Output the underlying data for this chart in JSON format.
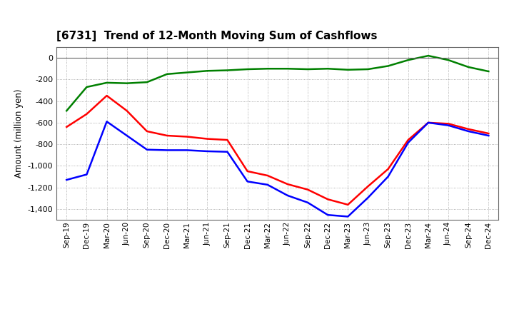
{
  "title": "[6731]  Trend of 12-Month Moving Sum of Cashflows",
  "ylabel": "Amount (million yen)",
  "ylim": [
    -1500,
    100
  ],
  "yticks": [
    0,
    -200,
    -400,
    -600,
    -800,
    -1000,
    -1200,
    -1400
  ],
  "x_labels": [
    "Sep-19",
    "Dec-19",
    "Mar-20",
    "Jun-20",
    "Sep-20",
    "Dec-20",
    "Mar-21",
    "Jun-21",
    "Sep-21",
    "Dec-21",
    "Mar-22",
    "Jun-22",
    "Sep-22",
    "Dec-22",
    "Mar-23",
    "Jun-23",
    "Sep-23",
    "Dec-23",
    "Mar-24",
    "Jun-24",
    "Sep-24",
    "Dec-24"
  ],
  "operating": [
    -640,
    -520,
    -350,
    -490,
    -680,
    -720,
    -730,
    -750,
    -760,
    -1050,
    -1090,
    -1170,
    -1220,
    -1310,
    -1360,
    -1190,
    -1030,
    -760,
    -600,
    -610,
    -660,
    -700
  ],
  "investing": [
    -490,
    -270,
    -230,
    -235,
    -225,
    -150,
    -135,
    -120,
    -115,
    -105,
    -100,
    -100,
    -105,
    -100,
    -110,
    -105,
    -75,
    -20,
    20,
    -20,
    -85,
    -125
  ],
  "free": [
    -1130,
    -1080,
    -590,
    -720,
    -850,
    -855,
    -855,
    -865,
    -870,
    -1145,
    -1175,
    -1275,
    -1340,
    -1455,
    -1470,
    -1295,
    -1100,
    -785,
    -600,
    -625,
    -680,
    -720
  ],
  "op_color": "#ff0000",
  "inv_color": "#008000",
  "free_color": "#0000ff",
  "bg_color": "#ffffff",
  "plot_bg_color": "#ffffff",
  "grid_color": "#999999",
  "linewidth": 1.8
}
